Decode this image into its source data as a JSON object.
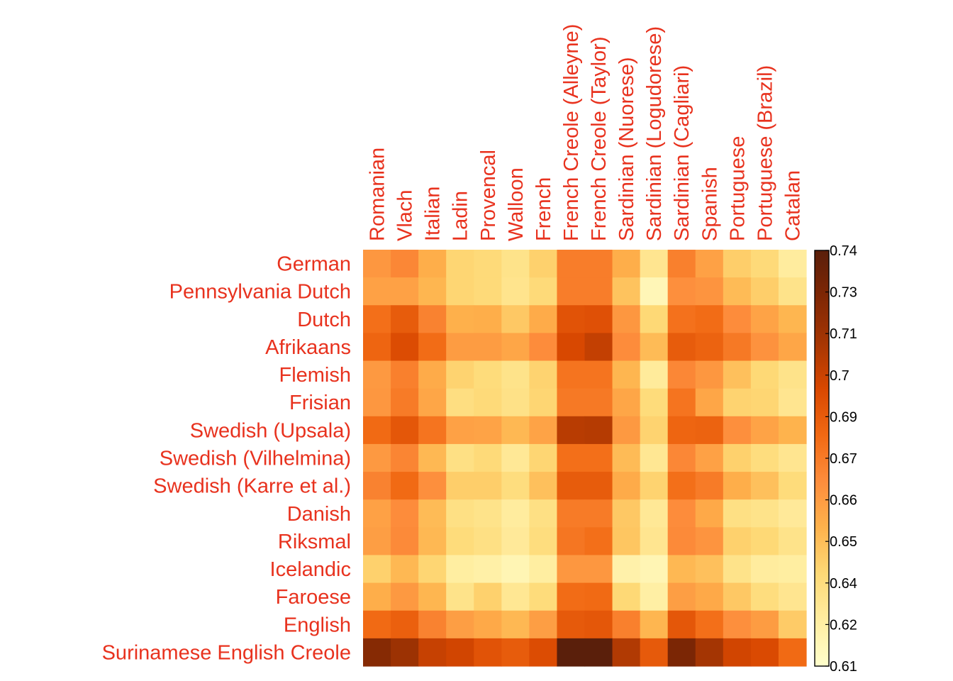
{
  "chart_data": {
    "type": "heatmap",
    "rows": [
      "German",
      "Pennsylvania Dutch",
      "Dutch",
      "Afrikaans",
      "Flemish",
      "Frisian",
      "Swedish (Upsala)",
      "Swedish (Vilhelmina)",
      "Swedish (Karre et al.)",
      "Danish",
      "Riksmal",
      "Icelandic",
      "Faroese",
      "English",
      "Surinamese English Creole"
    ],
    "columns": [
      "Romanian",
      "Vlach",
      "Italian",
      "Ladin",
      "Provencal",
      "Walloon",
      "French",
      "French Creole (Alleyne)",
      "French Creole (Taylor)",
      "Sardinian (Nuorese)",
      "Sardinian (Logudorese)",
      "Sardinian (Cagliari)",
      "Spanish",
      "Portuguese",
      "Portuguese (Brazil)",
      "Catalan"
    ],
    "values": [
      [
        0.664,
        0.67,
        0.655,
        0.64,
        0.638,
        0.632,
        0.642,
        0.674,
        0.674,
        0.655,
        0.63,
        0.673,
        0.66,
        0.643,
        0.638,
        0.625
      ],
      [
        0.66,
        0.66,
        0.652,
        0.64,
        0.638,
        0.631,
        0.638,
        0.674,
        0.674,
        0.647,
        0.617,
        0.667,
        0.665,
        0.65,
        0.643,
        0.632
      ],
      [
        0.68,
        0.688,
        0.672,
        0.654,
        0.655,
        0.645,
        0.656,
        0.692,
        0.693,
        0.664,
        0.639,
        0.679,
        0.681,
        0.668,
        0.659,
        0.652
      ],
      [
        0.684,
        0.695,
        0.681,
        0.662,
        0.662,
        0.658,
        0.668,
        0.697,
        0.703,
        0.668,
        0.65,
        0.688,
        0.685,
        0.676,
        0.666,
        0.658
      ],
      [
        0.663,
        0.673,
        0.656,
        0.641,
        0.637,
        0.632,
        0.641,
        0.678,
        0.678,
        0.652,
        0.626,
        0.67,
        0.664,
        0.648,
        0.639,
        0.632
      ],
      [
        0.664,
        0.675,
        0.658,
        0.635,
        0.638,
        0.633,
        0.64,
        0.676,
        0.676,
        0.658,
        0.637,
        0.678,
        0.658,
        0.641,
        0.64,
        0.63
      ],
      [
        0.682,
        0.69,
        0.678,
        0.66,
        0.659,
        0.651,
        0.659,
        0.706,
        0.707,
        0.663,
        0.641,
        0.684,
        0.685,
        0.667,
        0.659,
        0.653
      ],
      [
        0.663,
        0.671,
        0.651,
        0.634,
        0.638,
        0.628,
        0.64,
        0.68,
        0.68,
        0.65,
        0.629,
        0.67,
        0.66,
        0.642,
        0.636,
        0.63
      ],
      [
        0.672,
        0.682,
        0.667,
        0.643,
        0.643,
        0.636,
        0.648,
        0.688,
        0.688,
        0.656,
        0.641,
        0.68,
        0.675,
        0.655,
        0.648,
        0.637
      ],
      [
        0.66,
        0.668,
        0.65,
        0.634,
        0.632,
        0.625,
        0.634,
        0.675,
        0.675,
        0.645,
        0.628,
        0.668,
        0.657,
        0.634,
        0.632,
        0.627
      ],
      [
        0.661,
        0.669,
        0.651,
        0.637,
        0.634,
        0.627,
        0.636,
        0.677,
        0.68,
        0.646,
        0.63,
        0.669,
        0.665,
        0.642,
        0.639,
        0.632
      ],
      [
        0.642,
        0.651,
        0.64,
        0.624,
        0.622,
        0.618,
        0.624,
        0.664,
        0.664,
        0.621,
        0.618,
        0.651,
        0.648,
        0.632,
        0.625,
        0.624
      ],
      [
        0.655,
        0.663,
        0.652,
        0.632,
        0.642,
        0.629,
        0.637,
        0.681,
        0.682,
        0.639,
        0.623,
        0.661,
        0.657,
        0.645,
        0.636,
        0.63
      ],
      [
        0.682,
        0.686,
        0.672,
        0.661,
        0.657,
        0.651,
        0.661,
        0.689,
        0.69,
        0.673,
        0.652,
        0.69,
        0.68,
        0.667,
        0.662,
        0.644
      ],
      [
        0.723,
        0.715,
        0.702,
        0.699,
        0.692,
        0.688,
        0.695,
        0.74,
        0.74,
        0.708,
        0.689,
        0.727,
        0.712,
        0.699,
        0.696,
        0.682
      ]
    ],
    "colorbar": {
      "min": 0.61,
      "max": 0.74,
      "ticks": [
        "0.74",
        "0.73",
        "0.71",
        "0.7",
        "0.69",
        "0.67",
        "0.66",
        "0.65",
        "0.64",
        "0.62",
        "0.61"
      ],
      "colors": [
        "#ffffcc",
        "#ffeda0",
        "#fed976",
        "#feb24c",
        "#fd8d3c",
        "#f16913",
        "#d94801",
        "#a63603",
        "#7f2704",
        "#5a1f0b"
      ]
    },
    "title": "",
    "xlabel": "",
    "ylabel": "",
    "grid": false,
    "legend": "right"
  }
}
